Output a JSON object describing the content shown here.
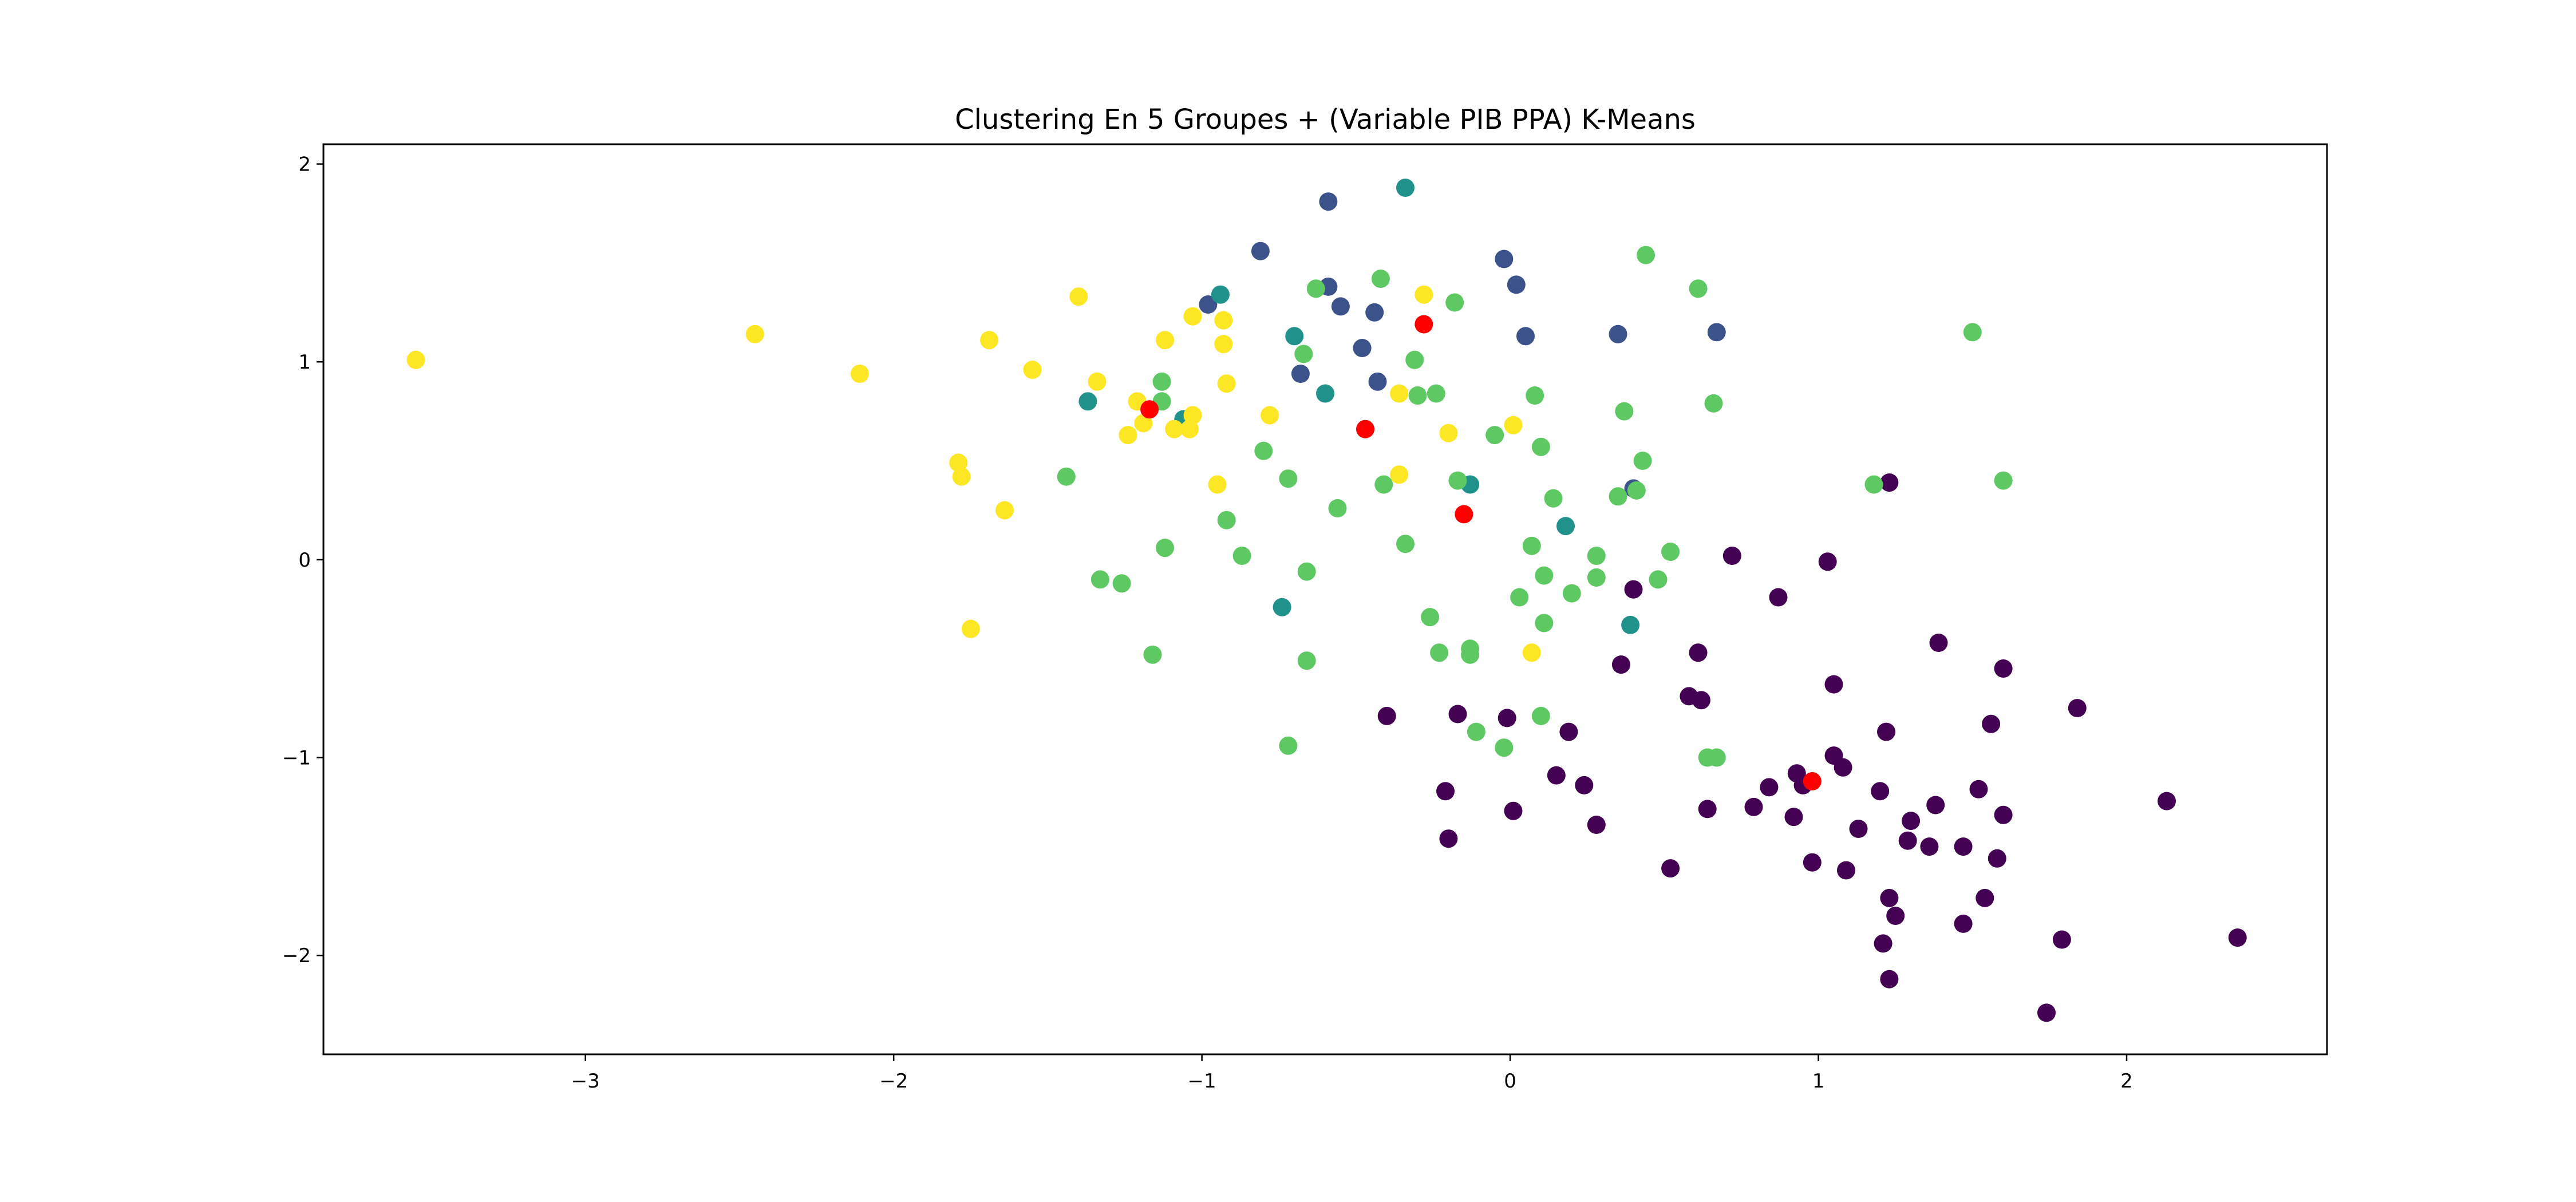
{
  "chart_data": {
    "type": "scatter",
    "title": "Clustering En 5 Groupes + (Variable PIB PPA) K-Means",
    "xlabel": "",
    "ylabel": "",
    "xlim": [
      -3.85,
      2.65
    ],
    "ylim": [
      -2.5,
      2.1
    ],
    "xticks": [
      -3,
      -2,
      -1,
      0,
      1,
      2
    ],
    "yticks": [
      -2,
      -1,
      0,
      1,
      2
    ],
    "xtick_labels": [
      "−3",
      "−2",
      "−1",
      "0",
      "1",
      "2"
    ],
    "ytick_labels": [
      "−2",
      "−1",
      "0",
      "1",
      "2"
    ],
    "grid": false,
    "legend": "none",
    "colors": {
      "cluster_0": "#440154",
      "cluster_1": "#3b528b",
      "cluster_2": "#21918c",
      "cluster_3": "#5ec962",
      "cluster_4": "#fde725",
      "centroids": "#ff0000"
    },
    "series": [
      {
        "color_key": "cluster_0",
        "points": [
          [
            1.23,
            0.39
          ],
          [
            0.72,
            0.02
          ],
          [
            1.03,
            -0.01
          ],
          [
            0.4,
            -0.15
          ],
          [
            0.87,
            -0.19
          ],
          [
            1.39,
            -0.42
          ],
          [
            0.61,
            -0.47
          ],
          [
            1.6,
            -0.55
          ],
          [
            0.36,
            -0.53
          ],
          [
            1.05,
            -0.63
          ],
          [
            0.58,
            -0.69
          ],
          [
            0.62,
            -0.71
          ],
          [
            1.84,
            -0.75
          ],
          [
            -0.4,
            -0.79
          ],
          [
            -0.17,
            -0.78
          ],
          [
            -0.01,
            -0.8
          ],
          [
            0.19,
            -0.87
          ],
          [
            1.22,
            -0.87
          ],
          [
            1.56,
            -0.83
          ],
          [
            1.05,
            -0.99
          ],
          [
            1.08,
            -1.05
          ],
          [
            0.93,
            -1.08
          ],
          [
            0.95,
            -1.14
          ],
          [
            0.15,
            -1.09
          ],
          [
            0.24,
            -1.14
          ],
          [
            -0.21,
            -1.17
          ],
          [
            0.84,
            -1.15
          ],
          [
            1.2,
            -1.17
          ],
          [
            1.52,
            -1.16
          ],
          [
            0.79,
            -1.25
          ],
          [
            0.64,
            -1.26
          ],
          [
            0.01,
            -1.27
          ],
          [
            1.38,
            -1.24
          ],
          [
            0.92,
            -1.3
          ],
          [
            1.3,
            -1.32
          ],
          [
            1.6,
            -1.29
          ],
          [
            2.13,
            -1.22
          ],
          [
            0.28,
            -1.34
          ],
          [
            1.13,
            -1.36
          ],
          [
            -0.2,
            -1.41
          ],
          [
            1.29,
            -1.42
          ],
          [
            1.36,
            -1.45
          ],
          [
            1.47,
            -1.45
          ],
          [
            0.98,
            -1.53
          ],
          [
            1.09,
            -1.57
          ],
          [
            0.52,
            -1.56
          ],
          [
            1.58,
            -1.51
          ],
          [
            1.23,
            -1.71
          ],
          [
            1.54,
            -1.71
          ],
          [
            1.25,
            -1.8
          ],
          [
            1.47,
            -1.84
          ],
          [
            1.21,
            -1.94
          ],
          [
            1.79,
            -1.92
          ],
          [
            2.36,
            -1.91
          ],
          [
            1.23,
            -2.12
          ],
          [
            1.74,
            -2.29
          ]
        ]
      },
      {
        "color_key": "cluster_1",
        "points": [
          [
            -0.59,
            1.81
          ],
          [
            -0.81,
            1.56
          ],
          [
            -0.02,
            1.52
          ],
          [
            -0.59,
            1.38
          ],
          [
            0.02,
            1.39
          ],
          [
            -0.55,
            1.28
          ],
          [
            -0.98,
            1.29
          ],
          [
            -0.44,
            1.25
          ],
          [
            0.05,
            1.13
          ],
          [
            0.35,
            1.14
          ],
          [
            0.67,
            1.15
          ],
          [
            -0.48,
            1.07
          ],
          [
            -0.68,
            0.94
          ],
          [
            -0.43,
            0.9
          ],
          [
            0.4,
            0.36
          ]
        ]
      },
      {
        "color_key": "cluster_2",
        "points": [
          [
            -0.34,
            1.88
          ],
          [
            -0.94,
            1.34
          ],
          [
            -0.7,
            1.13
          ],
          [
            -0.6,
            0.84
          ],
          [
            -1.37,
            0.8
          ],
          [
            -1.06,
            0.71
          ],
          [
            -0.13,
            0.38
          ],
          [
            0.18,
            0.17
          ],
          [
            -0.74,
            -0.24
          ],
          [
            0.39,
            -0.33
          ]
        ]
      },
      {
        "color_key": "cluster_3",
        "points": [
          [
            0.44,
            1.54
          ],
          [
            -0.63,
            1.37
          ],
          [
            -0.42,
            1.42
          ],
          [
            0.61,
            1.37
          ],
          [
            -0.18,
            1.3
          ],
          [
            1.5,
            1.15
          ],
          [
            -0.67,
            1.04
          ],
          [
            -0.31,
            1.01
          ],
          [
            -1.13,
            0.9
          ],
          [
            -0.3,
            0.83
          ],
          [
            -0.24,
            0.84
          ],
          [
            0.08,
            0.83
          ],
          [
            -1.13,
            0.8
          ],
          [
            0.66,
            0.79
          ],
          [
            0.37,
            0.75
          ],
          [
            -0.05,
            0.63
          ],
          [
            0.1,
            0.57
          ],
          [
            -0.8,
            0.55
          ],
          [
            0.43,
            0.5
          ],
          [
            -1.44,
            0.42
          ],
          [
            -0.72,
            0.41
          ],
          [
            -0.17,
            0.4
          ],
          [
            -0.41,
            0.38
          ],
          [
            1.18,
            0.38
          ],
          [
            1.6,
            0.4
          ],
          [
            0.41,
            0.35
          ],
          [
            0.14,
            0.31
          ],
          [
            0.35,
            0.32
          ],
          [
            -0.56,
            0.26
          ],
          [
            -0.92,
            0.2
          ],
          [
            -1.12,
            0.06
          ],
          [
            -0.34,
            0.08
          ],
          [
            0.07,
            0.07
          ],
          [
            0.52,
            0.04
          ],
          [
            -0.87,
            0.02
          ],
          [
            0.28,
            0.02
          ],
          [
            -0.66,
            -0.06
          ],
          [
            0.11,
            -0.08
          ],
          [
            0.28,
            -0.09
          ],
          [
            0.48,
            -0.1
          ],
          [
            -1.33,
            -0.1
          ],
          [
            -1.26,
            -0.12
          ],
          [
            0.2,
            -0.17
          ],
          [
            0.03,
            -0.19
          ],
          [
            -0.26,
            -0.29
          ],
          [
            0.11,
            -0.32
          ],
          [
            -0.13,
            -0.45
          ],
          [
            -0.23,
            -0.47
          ],
          [
            -0.13,
            -0.48
          ],
          [
            -1.16,
            -0.48
          ],
          [
            -0.66,
            -0.51
          ],
          [
            0.1,
            -0.79
          ],
          [
            -0.11,
            -0.87
          ],
          [
            -0.02,
            -0.95
          ],
          [
            -0.72,
            -0.94
          ],
          [
            0.64,
            -1.0
          ],
          [
            0.67,
            -1.0
          ]
        ]
      },
      {
        "color_key": "cluster_4",
        "points": [
          [
            -3.55,
            1.01
          ],
          [
            -2.45,
            1.14
          ],
          [
            -2.11,
            0.94
          ],
          [
            -1.4,
            1.33
          ],
          [
            -0.28,
            1.34
          ],
          [
            -1.69,
            1.11
          ],
          [
            -1.03,
            1.23
          ],
          [
            -0.93,
            1.21
          ],
          [
            -1.12,
            1.11
          ],
          [
            -0.93,
            1.09
          ],
          [
            -1.55,
            0.96
          ],
          [
            -1.34,
            0.9
          ],
          [
            -0.92,
            0.89
          ],
          [
            -0.36,
            0.84
          ],
          [
            -1.21,
            0.8
          ],
          [
            -1.03,
            0.73
          ],
          [
            -0.78,
            0.73
          ],
          [
            -1.19,
            0.69
          ],
          [
            -1.09,
            0.66
          ],
          [
            -1.04,
            0.66
          ],
          [
            -1.24,
            0.63
          ],
          [
            0.01,
            0.68
          ],
          [
            -0.2,
            0.64
          ],
          [
            -1.79,
            0.49
          ],
          [
            -1.78,
            0.42
          ],
          [
            -0.36,
            0.43
          ],
          [
            -0.95,
            0.38
          ],
          [
            -1.64,
            0.25
          ],
          [
            -1.75,
            -0.35
          ],
          [
            0.07,
            -0.47
          ]
        ]
      },
      {
        "color_key": "centroids",
        "points": [
          [
            -0.28,
            1.19
          ],
          [
            -1.17,
            0.76
          ],
          [
            -0.47,
            0.66
          ],
          [
            -0.15,
            0.23
          ],
          [
            0.98,
            -1.12
          ]
        ]
      }
    ]
  }
}
